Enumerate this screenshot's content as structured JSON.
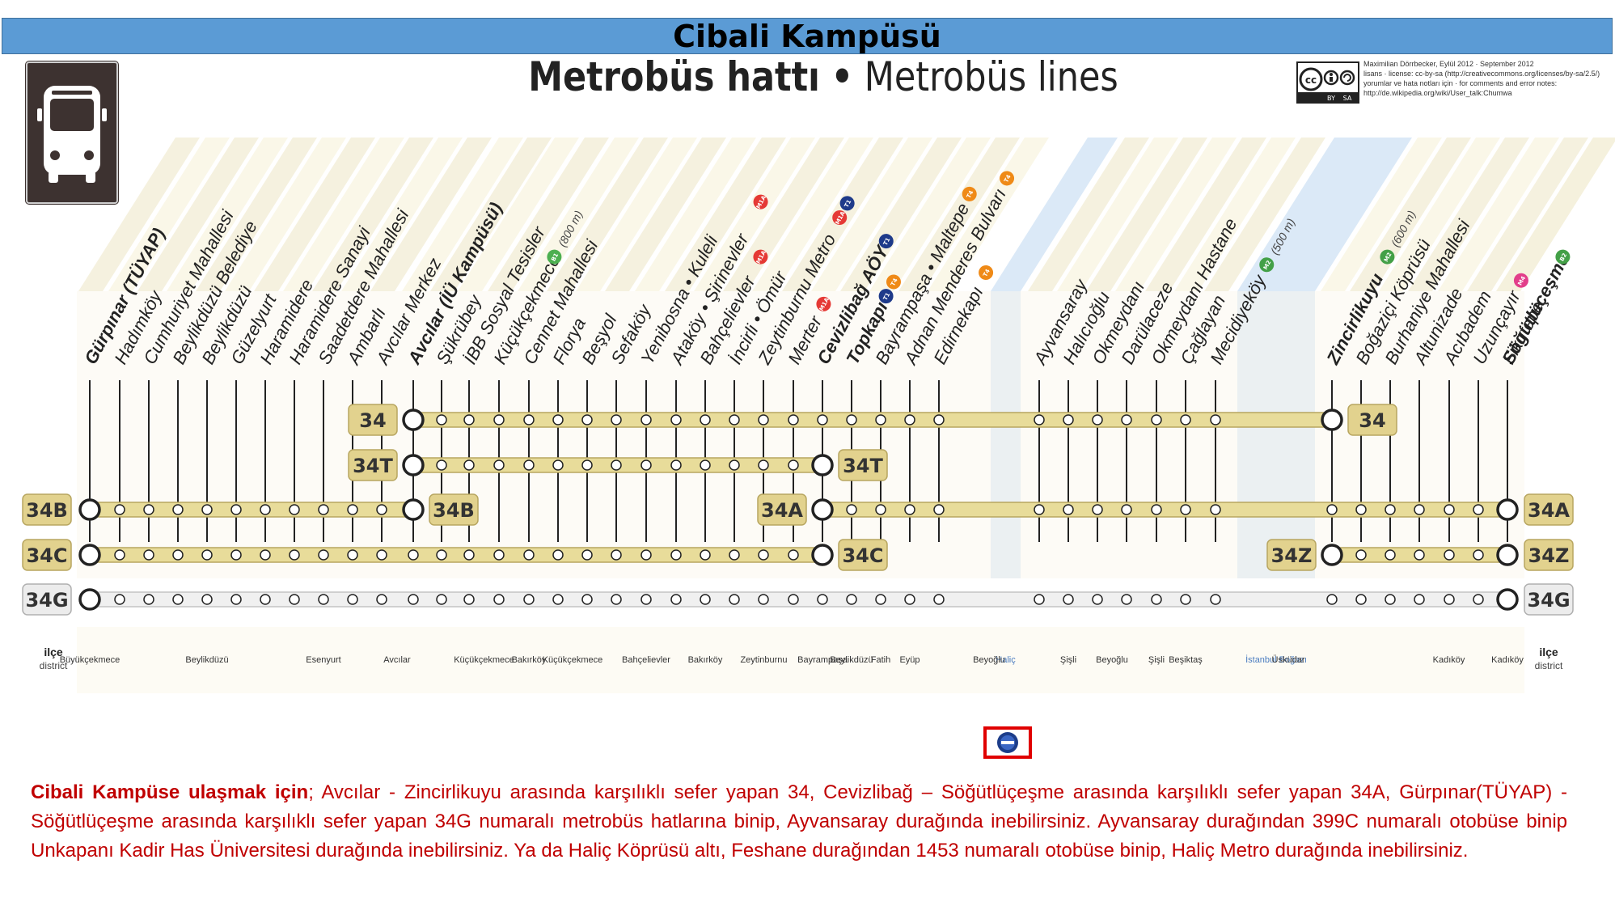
{
  "header": {
    "campus_title": "Cibali Kampüsü"
  },
  "map_title": {
    "part_tr": "Metrobüs hattı",
    "separator": "•",
    "part_en": "Metrobüs lines"
  },
  "license_lines": [
    "Maximilian Dörrbecker, Eylül 2012 · September 2012",
    "lisans · license: cc-by-sa (http://creativecommons.org/licenses/by-sa/2.5/)",
    "yorumlar ve hata notları için · for comments and error notes:",
    "http://de.wikipedia.org/wiki/User_talk:Chumwa"
  ],
  "license_logo_labels": [
    "cc",
    "BY",
    "SA"
  ],
  "stations": [
    {
      "name": "Gürpınar (TÜYAP)",
      "bold": true
    },
    {
      "name": "Hadımköy"
    },
    {
      "name": "Cumhuriyet Mahallesi"
    },
    {
      "name": "Beylikdüzü Belediye"
    },
    {
      "name": "Beylikdüzü"
    },
    {
      "name": "Güzelyurt"
    },
    {
      "name": "Haramidere"
    },
    {
      "name": "Haramidere Sanayi"
    },
    {
      "name": "Saadetdere Mahallesi"
    },
    {
      "name": "Ambarlı"
    },
    {
      "name": "Avcılar Merkez"
    },
    {
      "name": "Avcılar (İÜ Kampüsü)",
      "bold": true
    },
    {
      "name": "Şükrübey"
    },
    {
      "name": "İBB Sosyal Tesisler"
    },
    {
      "name": "Küçükçekmece",
      "badges": [
        {
          "label": "B1",
          "color": "#4caf50"
        }
      ],
      "note": "(800 m)"
    },
    {
      "name": "Cennet Mahallesi"
    },
    {
      "name": "Florya"
    },
    {
      "name": "Beşyol"
    },
    {
      "name": "Sefaköy"
    },
    {
      "name": "Yenibosna • Kuleli"
    },
    {
      "name": "Ataköy • Şirinevler",
      "badges": [
        {
          "label": "M1A",
          "color": "#e53935"
        }
      ]
    },
    {
      "name": "Bahçelievler",
      "badges": [
        {
          "label": "M1A",
          "color": "#e53935"
        }
      ]
    },
    {
      "name": "İncirli • Ömür"
    },
    {
      "name": "Zeytinburnu Metro",
      "badges": [
        {
          "label": "M1A",
          "color": "#e53935"
        },
        {
          "label": "T1",
          "color": "#1e3a8a"
        }
      ]
    },
    {
      "name": "Merter",
      "badges": [
        {
          "label": "M1A",
          "color": "#e53935"
        }
      ]
    },
    {
      "name": "Cevizlibağ AÖY",
      "bold": true,
      "badges": [
        {
          "label": "T1",
          "color": "#1e3a8a"
        }
      ]
    },
    {
      "name": "Topkapı",
      "bold": true,
      "badges": [
        {
          "label": "T1",
          "color": "#1e3a8a"
        },
        {
          "label": "T4",
          "color": "#ef8a17"
        }
      ]
    },
    {
      "name": "Bayrampaşa • Maltepe",
      "badges": [
        {
          "label": "T4",
          "color": "#ef8a17"
        }
      ]
    },
    {
      "name": "Adnan Menderes Bulvarı",
      "badges": [
        {
          "label": "T4",
          "color": "#ef8a17"
        }
      ]
    },
    {
      "name": "Edirnekapı",
      "badges": [
        {
          "label": "T4",
          "color": "#ef8a17"
        }
      ]
    },
    {
      "name": "Ayvansaray"
    },
    {
      "name": "Halıcıoğlu"
    },
    {
      "name": "Okmeydanı"
    },
    {
      "name": "Darülaceze"
    },
    {
      "name": "Okmeydanı Hastane"
    },
    {
      "name": "Çağlayan"
    },
    {
      "name": "Mecidiyeköy",
      "badges": [
        {
          "label": "M2",
          "color": "#43a047"
        }
      ],
      "note": "(500 m)"
    },
    {
      "name": "Zincirlikuyu",
      "bold": true,
      "badges": [
        {
          "label": "M2",
          "color": "#43a047"
        }
      ],
      "note": "(600 m)"
    },
    {
      "name": "Boğaziçi Köprüsü"
    },
    {
      "name": "Burhaniye Mahallesi"
    },
    {
      "name": "Altunizade"
    },
    {
      "name": "Acıbadem"
    },
    {
      "name": "Uzunçayır",
      "badges": [
        {
          "label": "M4",
          "color": "#e23e8a"
        }
      ]
    },
    {
      "name": "Fikirtepe"
    },
    {
      "name": "Söğütlüçeşme",
      "bold": true,
      "badges": [
        {
          "label": "B2",
          "color": "#43a047"
        }
      ]
    }
  ],
  "lines": [
    {
      "id": "34",
      "from": 11,
      "to": 37,
      "labels": [
        "34",
        "34"
      ]
    },
    {
      "id": "34T",
      "from": 11,
      "to": 25,
      "labels": [
        "34T",
        "34T"
      ]
    },
    {
      "id": "34B",
      "from": 0,
      "to": 11,
      "labels": [
        "34B",
        "34B"
      ]
    },
    {
      "id": "34A",
      "from": 25,
      "to": 44,
      "labels": [
        "34A",
        "34A"
      ]
    },
    {
      "id": "34C",
      "from": 0,
      "to": 25,
      "labels": [
        "34C",
        "34C"
      ]
    },
    {
      "id": "34Z",
      "from": 37,
      "to": 44,
      "labels": [
        "34Z",
        "34Z"
      ]
    },
    {
      "id": "34G",
      "from": 0,
      "to": 44,
      "labels": [
        "34G",
        "34G"
      ],
      "muted": true
    }
  ],
  "districts": [
    {
      "label": "Büyükçekmece",
      "from": 0,
      "to": 0
    },
    {
      "label": "Beylikdüzü",
      "from": 1,
      "to": 7
    },
    {
      "label": "Esenyurt",
      "from": 8,
      "to": 8
    },
    {
      "label": "Avcılar",
      "from": 9,
      "to": 12
    },
    {
      "label": "Küçükçekmece",
      "from": 13,
      "to": 14
    },
    {
      "label": "Bakırköy",
      "from": 15,
      "to": 15
    },
    {
      "label": "Küçükçekmece",
      "from": 16,
      "to": 17
    },
    {
      "label": "Bahçelievler",
      "from": 18,
      "to": 20
    },
    {
      "label": "Bakırköy",
      "from": 21,
      "to": 21
    },
    {
      "label": "Zeytinburnu",
      "from": 22,
      "to": 24
    },
    {
      "label": "Bayrampaşa",
      "from": 25,
      "to": 25
    },
    {
      "label": "Beylikdüzü",
      "from": 26,
      "to": 26
    },
    {
      "label": "Fatih",
      "from": 27,
      "to": 27
    },
    {
      "label": "Eyüp",
      "from": 28,
      "to": 28
    },
    {
      "label": "Haliç",
      "water": true
    },
    {
      "label": "Beyoğlu",
      "from": 29,
      "to": 30
    },
    {
      "label": "Şişli",
      "from": 31,
      "to": 31
    },
    {
      "label": "Beyoğlu",
      "from": 32,
      "to": 33
    },
    {
      "label": "Şişli",
      "from": 34,
      "to": 34
    },
    {
      "label": "Beşiktaş",
      "from": 35,
      "to": 35
    },
    {
      "label": "İstanbul Boğazı",
      "water": true
    },
    {
      "label": "Üsküdar",
      "from": 36,
      "to": 38
    },
    {
      "label": "Kadıköy",
      "from": 39,
      "to": 43
    },
    {
      "label": "Kadıköy",
      "from": 44,
      "to": 44
    }
  ],
  "district_header": {
    "tr": "ilçe",
    "en": "district"
  },
  "footer": {
    "lead": "Cibali Kampüse ulaşmak için",
    "body": "; Avcılar - Zincirlikuyu arasında karşılıklı sefer yapan 34, Cevizlibağ – Söğütlüçeşme arasında karşılıklı sefer yapan 34A, Gürpınar(TÜYAP) -  Söğütlüçeşme arasında karşılıklı sefer yapan 34G numaralı metrobüs hatlarına binip, Ayvansaray durağında inebilirsiniz. Ayvansaray durağından 399C numaralı otobüse binip Unkapanı Kadir Has Üniversitesi durağında inebilirsiniz. Ya da Haliç Köprüsü altı, Feshane durağından 1453 numaralı otobüse binip, Haliç Metro durağında inebilirsiniz."
  },
  "colors": {
    "header_bar": "#5b9bd5",
    "line_fill": "#e8dc9a",
    "line_border": "#b8a660",
    "label_bg": "#e2d28e",
    "water": "#dbe9f7",
    "footer_text": "#c00000",
    "campus_logo_border": "#e00000"
  }
}
